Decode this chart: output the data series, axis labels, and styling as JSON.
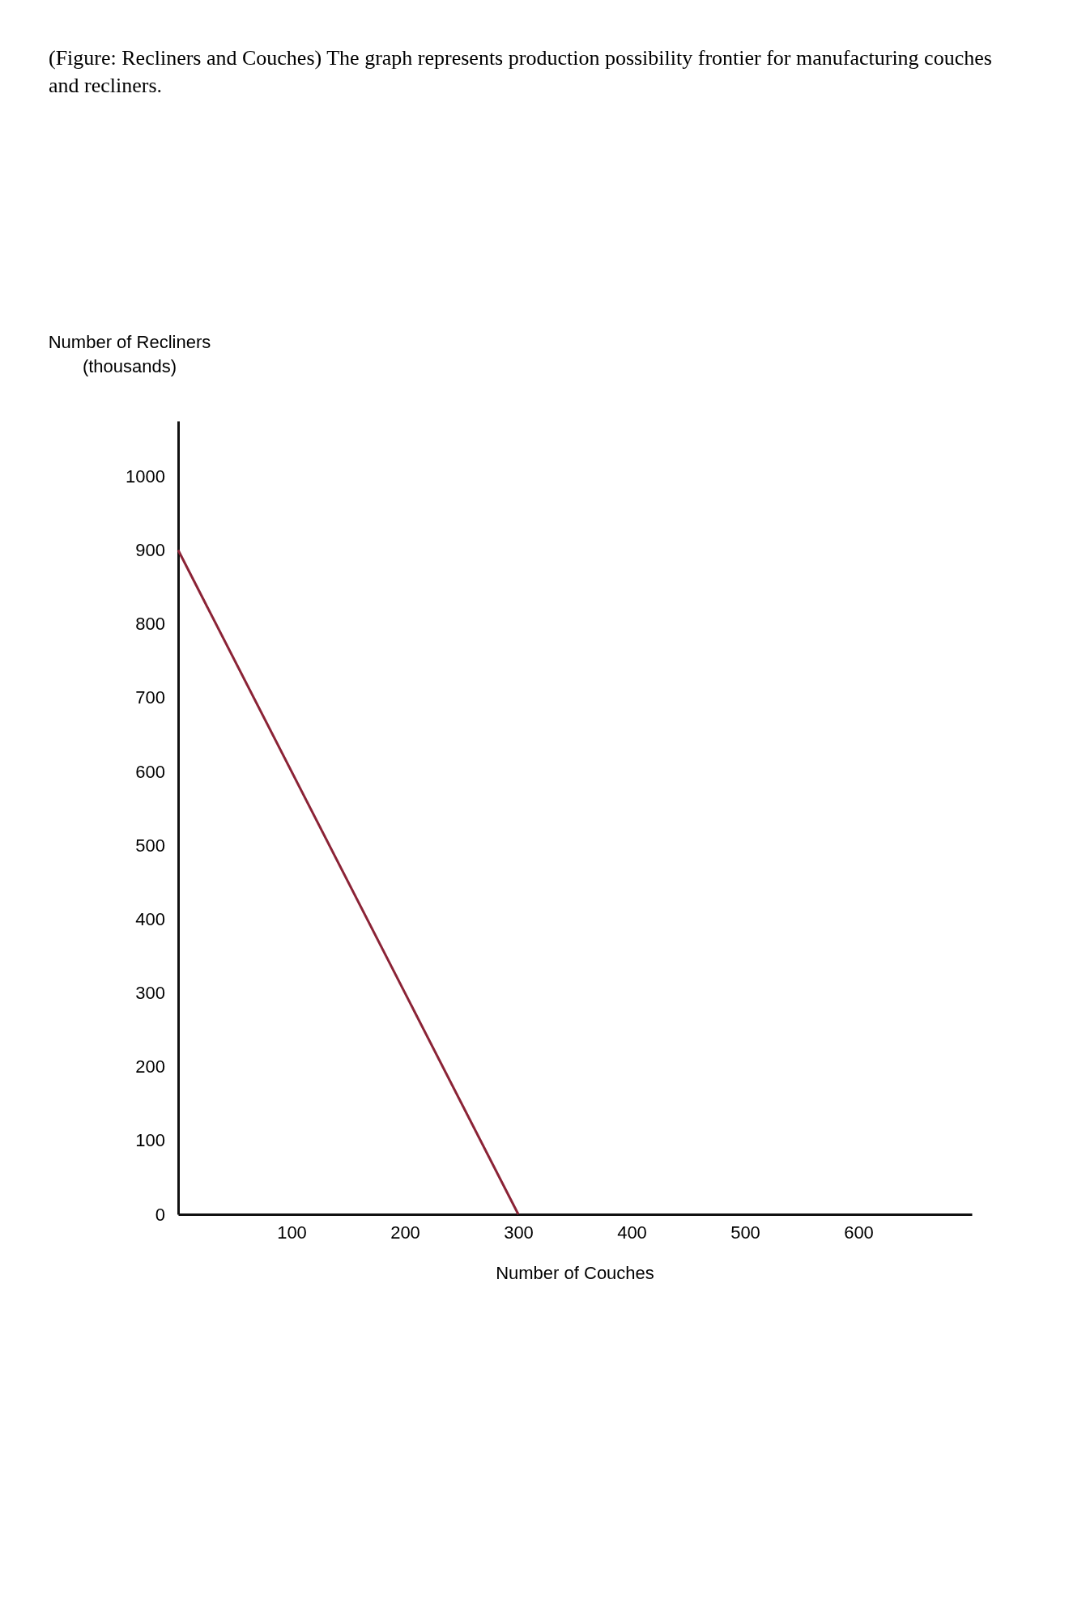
{
  "chart_data": {
    "type": "line",
    "title": "(Figure: Recliners and Couches) The graph represents production possibility frontier for manufacturing couches and recliners.",
    "xlabel": "Number of Couches",
    "ylabel": "Number of Recliners (thousands)",
    "x": [
      0,
      300
    ],
    "series": [
      {
        "color": "#8b2336",
        "values": [
          900,
          0
        ]
      }
    ],
    "xlim": [
      0,
      700
    ],
    "ylim": [
      0,
      1075
    ],
    "xticks": [
      100,
      200,
      300,
      400,
      500,
      600
    ],
    "yticks": [
      0,
      100,
      200,
      300,
      400,
      500,
      600,
      700,
      800,
      900,
      1000
    ],
    "grid": false,
    "marker": "none",
    "line_style": "solid"
  }
}
